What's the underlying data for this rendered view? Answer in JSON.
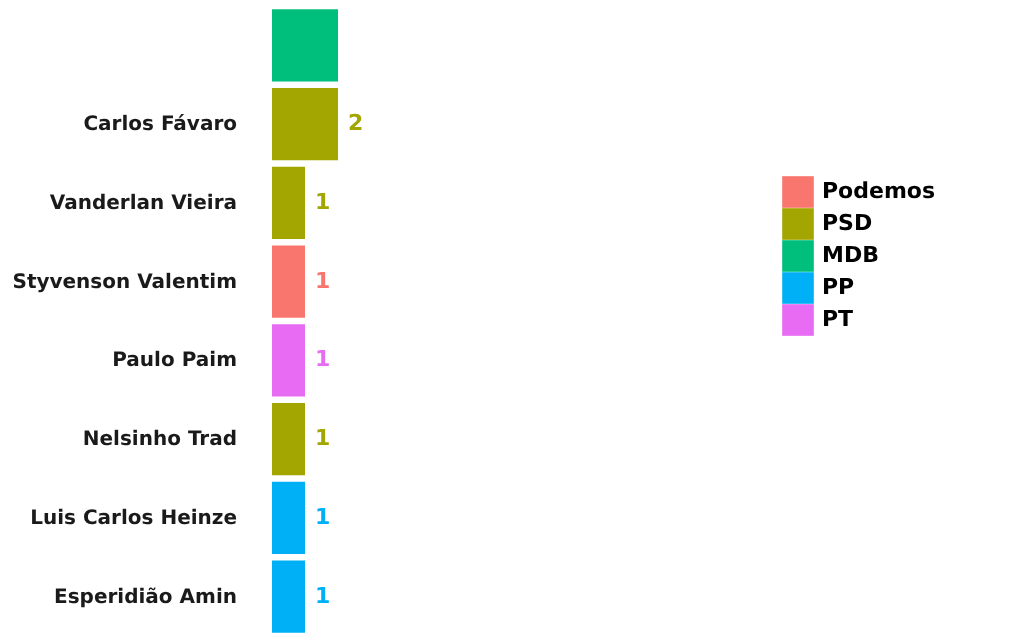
{
  "chart_data": {
    "type": "bar",
    "orientation": "horizontal",
    "categories": [
      null,
      "Carlos Fávaro",
      "Vanderlan Vieira",
      "Styvenson Valentim",
      "Paulo Paim",
      "Nelsinho Trad",
      "Luis Carlos Heinze",
      "Esperidião Amin"
    ],
    "series": [
      {
        "name": "Podemos",
        "color": "#f8766d",
        "values": [
          null,
          null,
          null,
          1,
          null,
          null,
          null,
          null
        ],
        "value_labels": [
          null,
          null,
          null,
          "1",
          null,
          null,
          null,
          null
        ]
      },
      {
        "name": "PSD",
        "color": "#a3a500",
        "values": [
          null,
          2,
          1,
          null,
          null,
          1,
          null,
          null
        ],
        "value_labels": [
          null,
          "2",
          "1",
          null,
          null,
          "1",
          null,
          null
        ]
      },
      {
        "name": "MDB",
        "color": "#00bf7d",
        "values": [
          2,
          null,
          null,
          null,
          null,
          null,
          null,
          null
        ],
        "value_labels": [
          null,
          null,
          null,
          null,
          null,
          null,
          null,
          null
        ]
      },
      {
        "name": "PP",
        "color": "#00b0f6",
        "values": [
          null,
          null,
          null,
          null,
          null,
          null,
          1,
          1
        ],
        "value_labels": [
          null,
          null,
          null,
          null,
          null,
          null,
          "1",
          "1"
        ]
      },
      {
        "name": "PT",
        "color": "#e76bf3",
        "values": [
          null,
          null,
          null,
          null,
          1,
          null,
          null,
          null
        ],
        "value_labels": [
          null,
          null,
          null,
          null,
          "1",
          null,
          null,
          null
        ]
      }
    ],
    "legend": "right"
  }
}
